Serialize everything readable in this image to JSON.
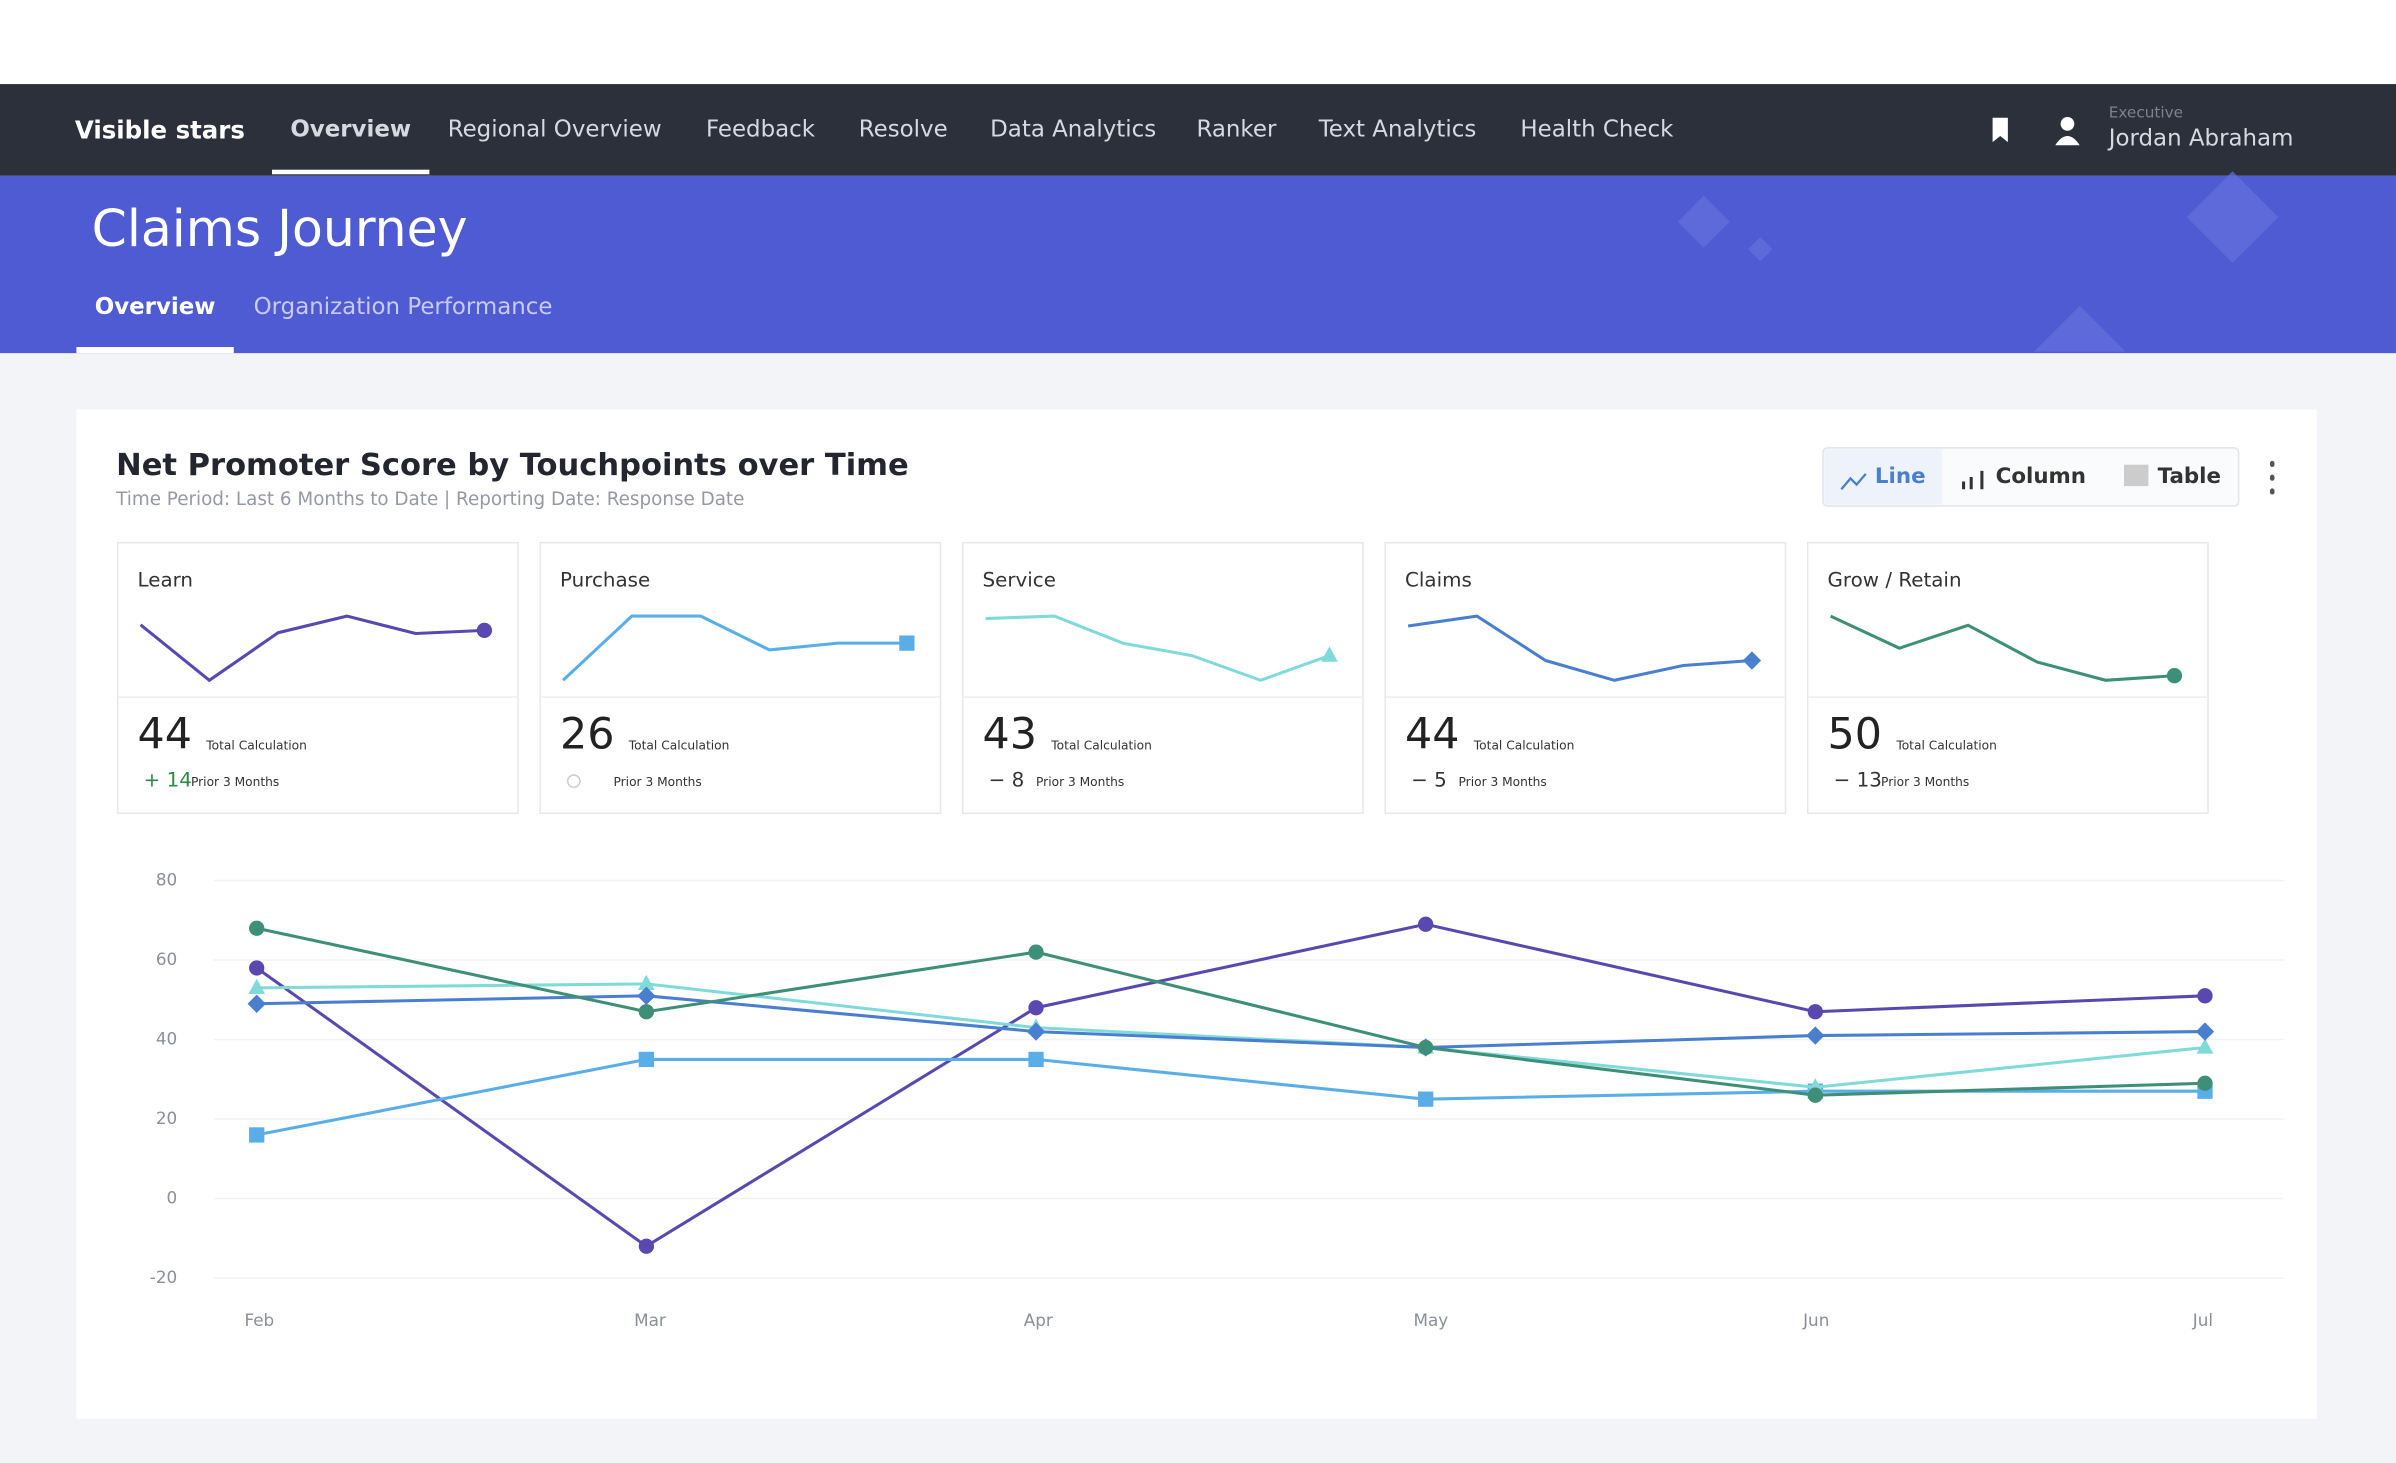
{
  "nav": {
    "brand": "Visible stars",
    "items": [
      "Overview",
      "Regional Overview",
      "Feedback",
      "Resolve",
      "Data Analytics",
      "Ranker",
      "Text Analytics",
      "Health Check"
    ],
    "user_role": "Executive",
    "user_name": "Jordan Abraham"
  },
  "header": {
    "title": "Claims Journey",
    "tabs": [
      "Overview",
      "Organization Performance"
    ]
  },
  "card": {
    "title": "Net Promoter Score by Touchpoints over Time",
    "subtitle": "Time Period: Last 6 Months to Date | Reporting Date: Response Date",
    "views": [
      "Line",
      "Column",
      "Table"
    ]
  },
  "kpis": {
    "value_label": "Total Calculation",
    "change_label": "Prior 3 Months",
    "items": [
      {
        "value": 44,
        "change": "+ 14"
      },
      {
        "value": 26
      },
      {
        "value": 43,
        "change": "− 8"
      },
      {
        "value": 44,
        "change": "− 5"
      },
      {
        "value": 50,
        "change": "− 13"
      }
    ]
  },
  "chart_data": {
    "type": "line",
    "categories": [
      "Feb",
      "Mar",
      "Apr",
      "May",
      "Jun",
      "Jul"
    ],
    "series": [
      {
        "name": "Learn",
        "color": "#5a48b0",
        "marker": "circle",
        "values": [
          58,
          -12,
          48,
          69,
          47,
          51
        ]
      },
      {
        "name": "Purchase",
        "color": "#5aaee8",
        "marker": "square",
        "values": [
          16,
          35,
          35,
          25,
          27,
          27
        ]
      },
      {
        "name": "Service",
        "color": "#80dada",
        "marker": "triangle",
        "values": [
          53,
          54,
          43,
          38,
          28,
          38
        ]
      },
      {
        "name": "Claims",
        "color": "#4a7fcf",
        "marker": "diamond",
        "values": [
          49,
          51,
          42,
          38,
          41,
          42
        ]
      },
      {
        "name": "Grow / Retain",
        "color": "#3e8f78",
        "marker": "circle",
        "values": [
          68,
          47,
          62,
          38,
          26,
          29
        ]
      }
    ],
    "ylim": [
      -20,
      80
    ],
    "yticks": [
      80,
      60,
      40,
      20,
      0,
      -20
    ],
    "grid": true
  }
}
